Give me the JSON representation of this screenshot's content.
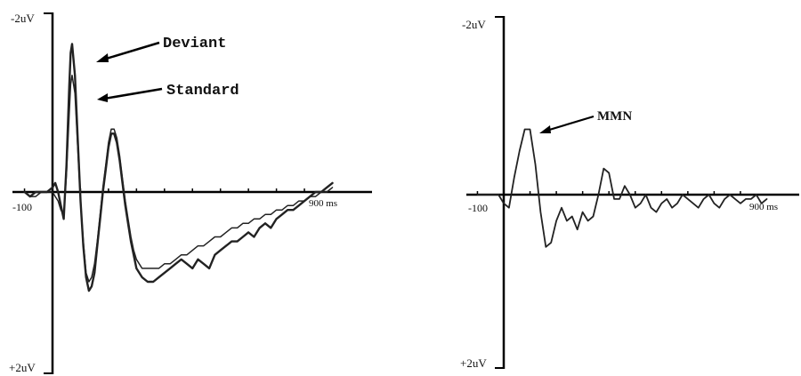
{
  "chart_data": [
    {
      "type": "line",
      "title": "",
      "x_unit": "ms",
      "xlim": [
        -100,
        1000
      ],
      "ylim": [
        -2,
        2
      ],
      "y_inverted": true,
      "grid": false,
      "y_tick_labels": {
        "top": "-2uV",
        "bottom": "+2uV"
      },
      "x_tick_labels": {
        "start": "-100",
        "end": "900 ms"
      },
      "x_ticks": [
        -100,
        0,
        100,
        200,
        300,
        400,
        500,
        600,
        700,
        800,
        900
      ],
      "series": [
        {
          "name": "Deviant",
          "color": "#222222",
          "x": [
            -100,
            -80,
            -60,
            -40,
            -20,
            0,
            10,
            20,
            30,
            40,
            50,
            60,
            65,
            70,
            80,
            90,
            100,
            110,
            120,
            130,
            140,
            150,
            160,
            170,
            180,
            190,
            200,
            210,
            220,
            230,
            240,
            250,
            260,
            270,
            280,
            290,
            300,
            320,
            340,
            360,
            380,
            400,
            420,
            440,
            460,
            480,
            500,
            520,
            540,
            560,
            580,
            600,
            620,
            640,
            660,
            680,
            700,
            720,
            740,
            760,
            780,
            800,
            820,
            840,
            860,
            880,
            900,
            920,
            940,
            960,
            980,
            1000
          ],
          "values": [
            0.0,
            0.05,
            0.0,
            0.0,
            0.0,
            -0.05,
            -0.1,
            0.0,
            0.15,
            0.3,
            -0.3,
            -1.2,
            -1.55,
            -1.65,
            -1.3,
            -0.6,
            0.1,
            0.6,
            0.95,
            1.1,
            1.05,
            0.9,
            0.6,
            0.3,
            0.0,
            -0.25,
            -0.5,
            -0.65,
            -0.65,
            -0.55,
            -0.35,
            -0.1,
            0.15,
            0.35,
            0.55,
            0.7,
            0.85,
            0.95,
            1.0,
            1.0,
            0.95,
            0.9,
            0.85,
            0.8,
            0.75,
            0.8,
            0.85,
            0.75,
            0.8,
            0.85,
            0.7,
            0.65,
            0.6,
            0.55,
            0.55,
            0.5,
            0.45,
            0.5,
            0.4,
            0.35,
            0.4,
            0.3,
            0.25,
            0.2,
            0.2,
            0.15,
            0.1,
            0.05,
            0.0,
            0.0,
            -0.05,
            -0.1
          ]
        },
        {
          "name": "Standard",
          "color": "#555555",
          "x": [
            -100,
            -80,
            -60,
            -40,
            -20,
            0,
            10,
            20,
            30,
            40,
            50,
            60,
            65,
            70,
            80,
            90,
            100,
            110,
            120,
            130,
            140,
            150,
            160,
            170,
            180,
            190,
            200,
            210,
            220,
            230,
            240,
            250,
            260,
            270,
            280,
            290,
            300,
            320,
            340,
            360,
            380,
            400,
            420,
            440,
            460,
            480,
            500,
            520,
            540,
            560,
            580,
            600,
            620,
            640,
            660,
            680,
            700,
            720,
            740,
            760,
            780,
            800,
            820,
            840,
            860,
            880,
            900,
            920,
            940,
            960,
            980,
            1000
          ],
          "values": [
            0.0,
            0.05,
            0.05,
            0.0,
            0.0,
            0.0,
            0.05,
            0.1,
            0.2,
            0.25,
            -0.2,
            -0.9,
            -1.2,
            -1.3,
            -1.1,
            -0.5,
            0.1,
            0.55,
            0.9,
            1.0,
            0.95,
            0.8,
            0.55,
            0.25,
            -0.05,
            -0.3,
            -0.55,
            -0.7,
            -0.7,
            -0.6,
            -0.4,
            -0.15,
            0.1,
            0.3,
            0.5,
            0.65,
            0.75,
            0.85,
            0.85,
            0.85,
            0.85,
            0.8,
            0.8,
            0.75,
            0.7,
            0.7,
            0.65,
            0.6,
            0.6,
            0.55,
            0.5,
            0.5,
            0.45,
            0.4,
            0.4,
            0.35,
            0.35,
            0.3,
            0.3,
            0.25,
            0.25,
            0.2,
            0.2,
            0.15,
            0.15,
            0.1,
            0.1,
            0.05,
            0.05,
            0.0,
            0.0,
            -0.05
          ]
        }
      ],
      "annotations": [
        "Deviant",
        "Standard"
      ]
    },
    {
      "type": "line",
      "title": "",
      "x_unit": "ms",
      "xlim": [
        -100,
        1000
      ],
      "ylim": [
        -2,
        2
      ],
      "y_inverted": true,
      "grid": false,
      "y_tick_labels": {
        "top": "-2uV",
        "bottom": "+2uV"
      },
      "x_tick_labels": {
        "start": "-100",
        "end": "900 ms"
      },
      "x_ticks": [
        -100,
        0,
        100,
        200,
        300,
        400,
        500,
        600,
        700,
        800,
        900
      ],
      "series": [
        {
          "color": "#222222",
          "x": [
            -100,
            -80,
            -60,
            -40,
            -20,
            0,
            20,
            40,
            60,
            80,
            100,
            120,
            140,
            160,
            180,
            200,
            220,
            240,
            260,
            280,
            300,
            320,
            340,
            360,
            380,
            400,
            420,
            440,
            460,
            480,
            500,
            520,
            540,
            560,
            580,
            600,
            620,
            640,
            660,
            680,
            700,
            720,
            740,
            760,
            780,
            800,
            820,
            840,
            860,
            880,
            900,
            920,
            940,
            960,
            980,
            1000
          ],
          "values": [
            0.0,
            0.0,
            0.0,
            0.0,
            0.0,
            0.1,
            0.15,
            -0.2,
            -0.5,
            -0.75,
            -0.75,
            -0.35,
            0.2,
            0.6,
            0.55,
            0.3,
            0.15,
            0.3,
            0.25,
            0.4,
            0.2,
            0.3,
            0.25,
            0.0,
            -0.3,
            -0.25,
            0.05,
            0.05,
            -0.1,
            0.0,
            0.15,
            0.1,
            0.0,
            0.15,
            0.2,
            0.1,
            0.05,
            0.15,
            0.1,
            0.0,
            0.05,
            0.1,
            0.15,
            0.05,
            0.0,
            0.1,
            0.15,
            0.05,
            0.0,
            0.05,
            0.1,
            0.05,
            0.05,
            0.0,
            0.1,
            0.05
          ]
        }
      ],
      "annotations": [
        "MMN"
      ]
    }
  ]
}
